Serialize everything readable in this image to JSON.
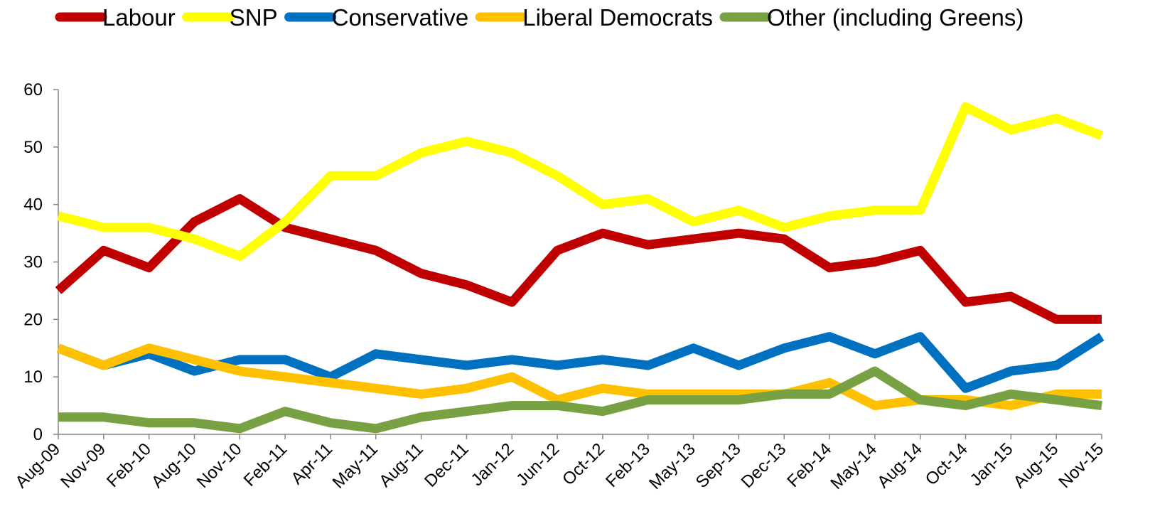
{
  "chart_data": {
    "type": "line",
    "categories": [
      "Aug-09",
      "Nov-09",
      "Feb-10",
      "Aug-10",
      "Nov-10",
      "Feb-11",
      "Apr-11",
      "May-11",
      "Aug-11",
      "Dec-11",
      "Jan-12",
      "Jun-12",
      "Oct-12",
      "Feb-13",
      "May-13",
      "Sep-13",
      "Dec-13",
      "Feb-14",
      "May-14",
      "Aug-14",
      "Oct-14",
      "Jan-15",
      "Aug-15",
      "Nov-15"
    ],
    "ylim": [
      0,
      60
    ],
    "yticks": [
      0,
      10,
      20,
      30,
      40,
      50,
      60
    ],
    "legend_position": "top",
    "grid": false,
    "series": [
      {
        "name": "Labour",
        "color": "#C00000",
        "values": [
          25,
          32,
          29,
          37,
          41,
          36,
          34,
          32,
          28,
          26,
          23,
          32,
          35,
          33,
          34,
          35,
          34,
          29,
          30,
          32,
          23,
          24,
          20,
          20
        ]
      },
      {
        "name": "SNP",
        "color": "#FFFF00",
        "values": [
          38,
          36,
          36,
          34,
          31,
          37,
          45,
          45,
          49,
          51,
          49,
          45,
          40,
          41,
          37,
          39,
          36,
          38,
          39,
          39,
          57,
          53,
          55,
          52
        ]
      },
      {
        "name": "Conservative",
        "color": "#0070C0",
        "values": [
          15,
          12,
          14,
          11,
          13,
          13,
          10,
          14,
          13,
          12,
          13,
          12,
          13,
          12,
          15,
          12,
          15,
          17,
          14,
          17,
          8,
          11,
          12,
          17
        ]
      },
      {
        "name": "Liberal Democrats",
        "color": "#FFC000",
        "values": [
          15,
          12,
          15,
          13,
          11,
          10,
          9,
          8,
          7,
          8,
          10,
          6,
          8,
          7,
          7,
          7,
          7,
          9,
          5,
          6,
          6,
          5,
          7,
          7
        ]
      },
      {
        "name": "Other (including Greens)",
        "color": "#77A143",
        "values": [
          3,
          3,
          2,
          2,
          1,
          4,
          2,
          1,
          3,
          4,
          5,
          5,
          4,
          6,
          6,
          6,
          7,
          7,
          11,
          6,
          5,
          7,
          6,
          5
        ]
      }
    ]
  }
}
